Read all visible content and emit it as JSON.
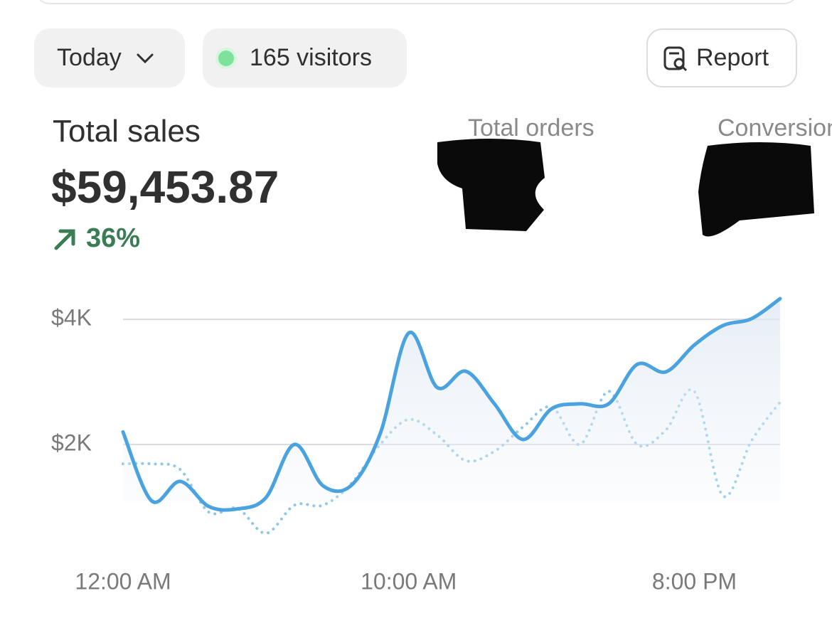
{
  "filters": {
    "period": "Today",
    "visitors": "165 visitors",
    "report": "Report"
  },
  "metrics": {
    "total_sales": {
      "label": "Total sales",
      "value": "$59,453.87",
      "change": "36%"
    },
    "total_orders": {
      "label": "Total orders"
    },
    "conversion": {
      "label": "Conversion"
    }
  },
  "chart_data": {
    "type": "line",
    "categories": [
      "12:00 AM",
      null,
      null,
      null,
      null,
      null,
      null,
      null,
      null,
      null,
      "10:00 AM",
      null,
      null,
      null,
      null,
      null,
      null,
      null,
      null,
      null,
      "8:00 PM",
      null,
      null,
      null
    ],
    "series": [
      {
        "color": "#4aa3df",
        "style": "solid",
        "fill": true,
        "values": [
          2200,
          1100,
          1410,
          1010,
          970,
          1150,
          2000,
          1340,
          1350,
          2170,
          3780,
          2910,
          3170,
          2650,
          2080,
          2570,
          2650,
          2650,
          3280,
          3160,
          3590,
          3900,
          4010,
          4330
        ]
      },
      {
        "color": "#8fc7e8",
        "style": "dotted",
        "fill": false,
        "values": [
          1690,
          1690,
          1600,
          920,
          980,
          580,
          1030,
          1030,
          1380,
          2000,
          2400,
          2150,
          1740,
          1890,
          2280,
          2600,
          2000,
          2850,
          2000,
          2230,
          2850,
          1180,
          2060,
          2680
        ]
      }
    ],
    "ylim": [
      0,
      4400
    ],
    "yticks": [
      {
        "value": 2000,
        "label": "$2K"
      },
      {
        "value": 4000,
        "label": "$4K"
      }
    ],
    "grid": true
  }
}
